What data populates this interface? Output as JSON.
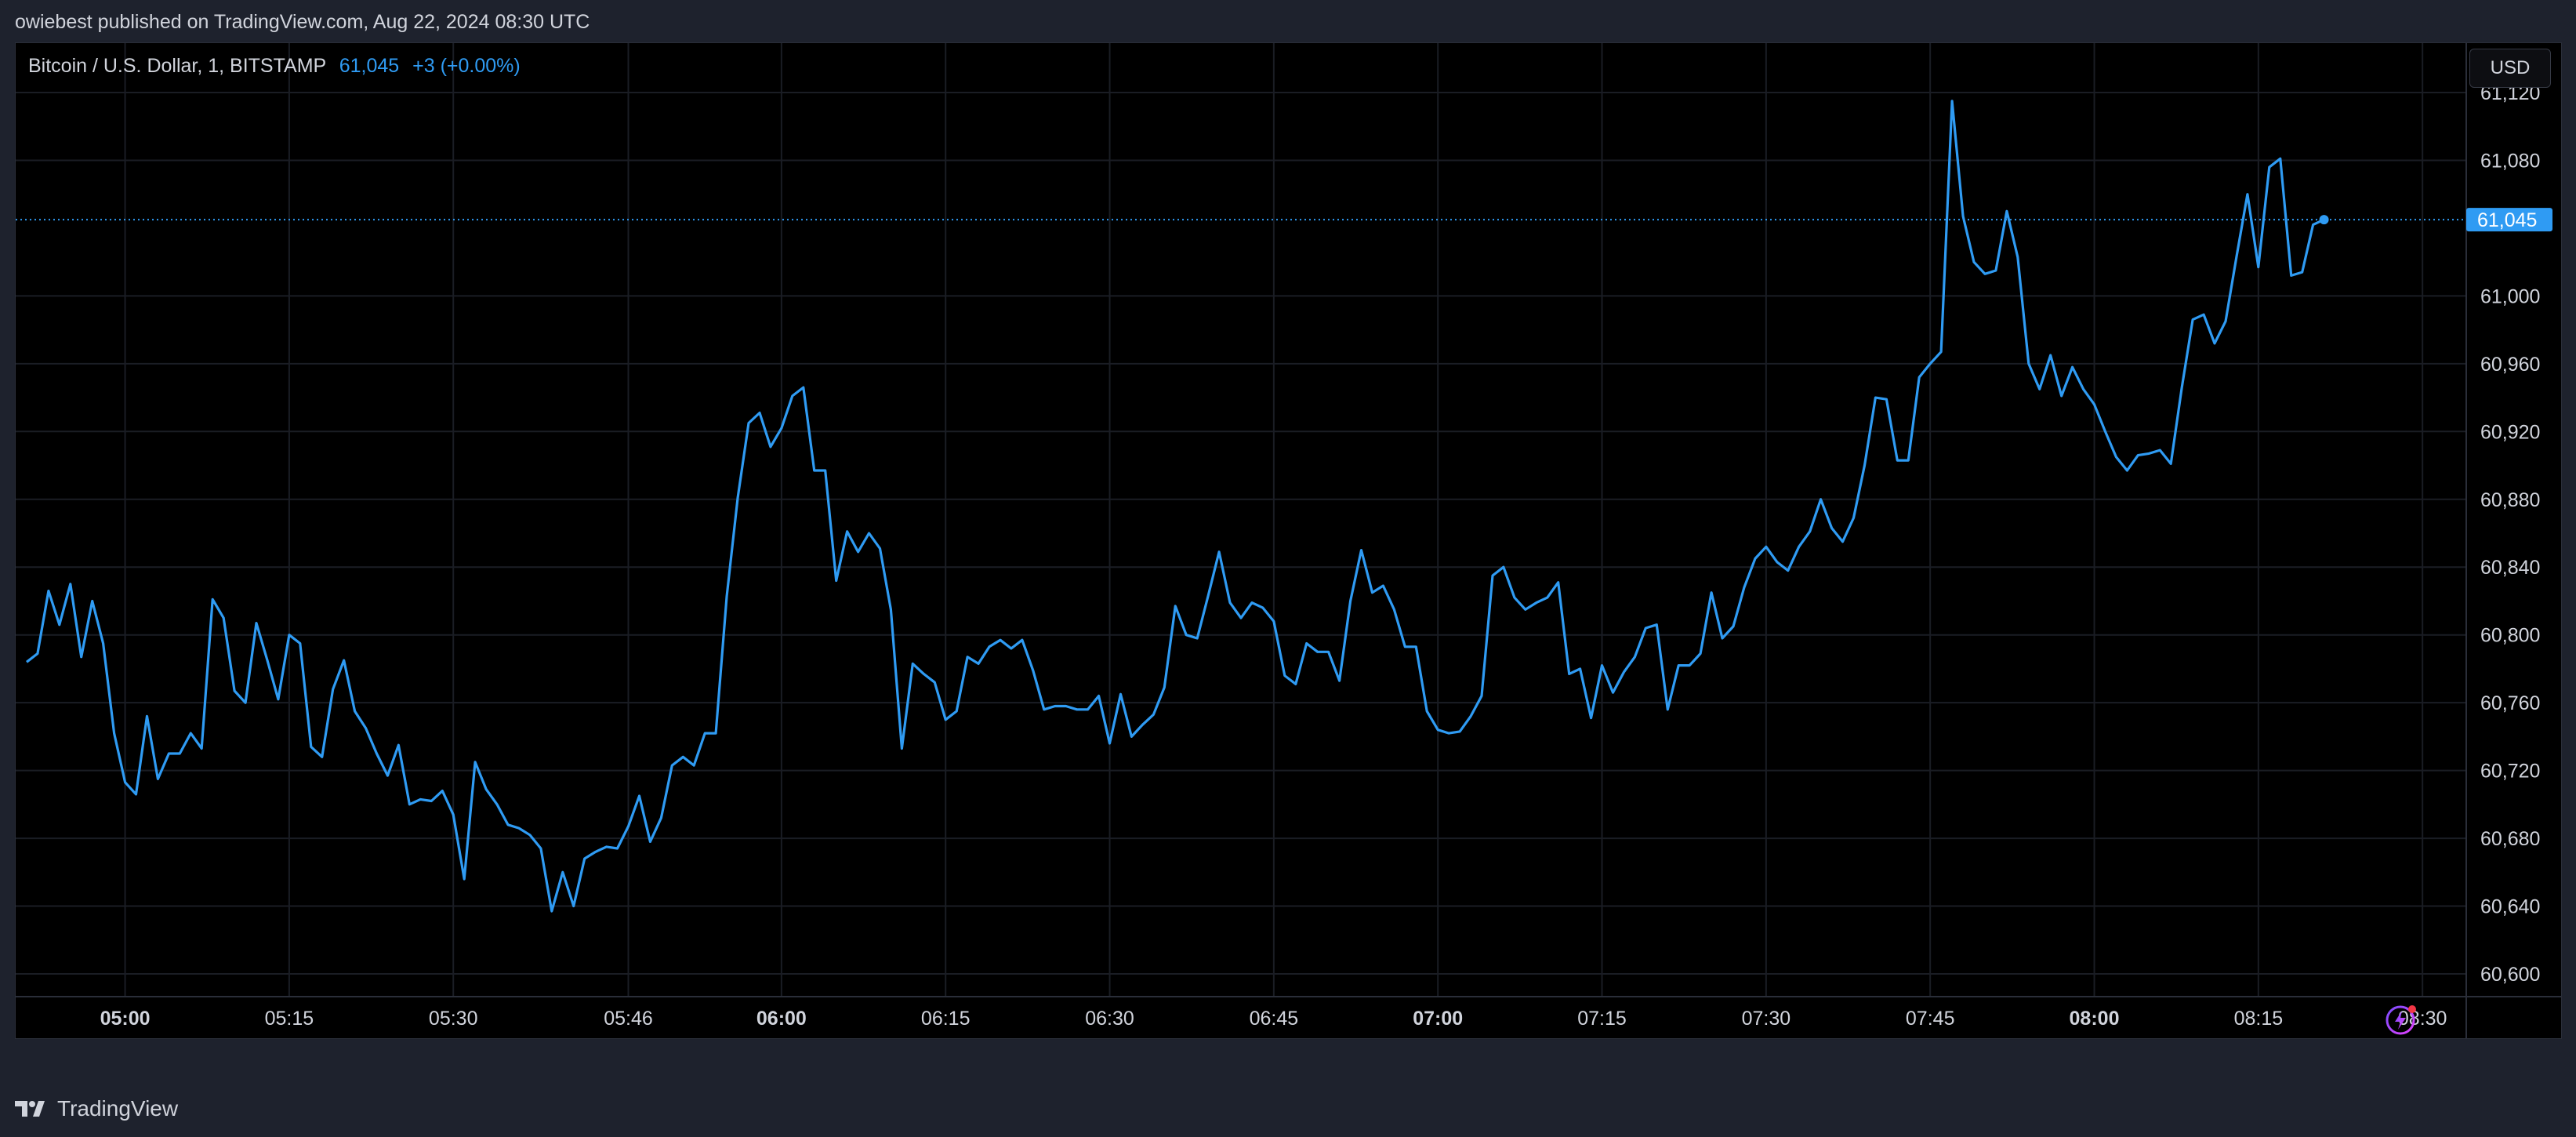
{
  "header": {
    "published_text": "owiebest published on TradingView.com, Aug 22, 2024 08:30 UTC"
  },
  "legend": {
    "symbol": "Bitcoin / U.S. Dollar, 1, BITSTAMP",
    "price": "61,045",
    "change": "+3 (+0.00%)"
  },
  "currency_button": {
    "label": "USD"
  },
  "footer": {
    "brand": "TradingView"
  },
  "icons": {
    "logo": "tradingview-logo-icon",
    "bolt": "lightning-bolt-icon"
  },
  "colors": {
    "line": "#2f9bf3",
    "background": "#000000",
    "grid": "#1a1d24",
    "axis_text": "#d1d4dc",
    "last_price_label": "#2f9bf3"
  },
  "chart_data": {
    "type": "line",
    "title": "Bitcoin / U.S. Dollar, 1, BITSTAMP",
    "xlabel": "",
    "ylabel": "",
    "x_start": "04:51",
    "interval_minutes": 1,
    "ylim": [
      60585,
      61150
    ],
    "xlim": [
      "04:50",
      "08:34"
    ],
    "grid": true,
    "legend_position": "top-left",
    "y_ticks": [
      61120,
      61080,
      61000,
      60960,
      60920,
      60880,
      60840,
      60800,
      60760,
      60720,
      60680,
      60640,
      60600
    ],
    "y_tick_labels": [
      "61,120",
      "61,080",
      "61,000",
      "60,960",
      "60,920",
      "60,880",
      "60,840",
      "60,800",
      "60,760",
      "60,720",
      "60,680",
      "60,640",
      "60,600"
    ],
    "x_ticks": [
      "05:00",
      "05:15",
      "05:30",
      "05:46",
      "06:00",
      "06:15",
      "06:30",
      "06:45",
      "07:00",
      "07:15",
      "07:30",
      "07:45",
      "08:00",
      "08:15",
      "08:30"
    ],
    "x_ticks_bold": [
      "05:00",
      "06:00",
      "07:00",
      "08:00"
    ],
    "last_price": 61045,
    "last_price_label": "61,045",
    "series": [
      {
        "values": [
          60784,
          60789,
          60826,
          60806,
          60830,
          60787,
          60820,
          60795,
          60742,
          60713,
          60706,
          60752,
          60715,
          60730,
          60730,
          60742,
          60733,
          60821,
          60810,
          60767,
          60760,
          60807,
          60785,
          60762,
          60800,
          60795,
          60734,
          60728,
          60768,
          60785,
          60755,
          60745,
          60730,
          60717,
          60735,
          60700,
          60703,
          60702,
          60708,
          60694,
          60656,
          60725,
          60709,
          60700,
          60688,
          60686,
          60682,
          60674,
          60637,
          60660,
          60640,
          60668,
          60672,
          60675,
          60674,
          60687,
          60705,
          60678,
          60692,
          60723,
          60728,
          60723,
          60742,
          60742,
          60823,
          60881,
          60925,
          60931,
          60911,
          60922,
          60941,
          60946,
          60897,
          60897,
          60832,
          60861,
          60849,
          60860,
          60851,
          60815,
          60733,
          60783,
          60777,
          60772,
          60750,
          60755,
          60787,
          60783,
          60793,
          60797,
          60792,
          60797,
          60779,
          60756,
          60758,
          60758,
          60756,
          60756,
          60764,
          60736,
          60765,
          60740,
          60747,
          60753,
          60769,
          60817,
          60800,
          60798,
          60823,
          60849,
          60819,
          60810,
          60819,
          60816,
          60808,
          60776,
          60771,
          60795,
          60790,
          60790,
          60773,
          60820,
          60850,
          60825,
          60829,
          60815,
          60793,
          60793,
          60755,
          60744,
          60742,
          60743,
          60752,
          60764,
          60835,
          60840,
          60822,
          60815,
          60819,
          60822,
          60831,
          60777,
          60780,
          60751,
          60782,
          60766,
          60778,
          60787,
          60804,
          60806,
          60756,
          60782,
          60782,
          60789,
          60825,
          60798,
          60805,
          60828,
          60845,
          60852,
          60843,
          60838,
          60852,
          60861,
          60880,
          60863,
          60855,
          60869,
          60900,
          60940,
          60939,
          60903,
          60903,
          60952,
          60960,
          60967,
          61115,
          61047,
          61020,
          61013,
          61015,
          61050,
          61023,
          60960,
          60945,
          60965,
          60941,
          60958,
          60945,
          60936,
          60920,
          60905,
          60897,
          60906,
          60907,
          60909,
          60901,
          60946,
          60986,
          60989,
          60972,
          60985,
          61023,
          61060,
          61017,
          61076,
          61081,
          61012,
          61014,
          61042,
          61045
        ]
      }
    ]
  }
}
